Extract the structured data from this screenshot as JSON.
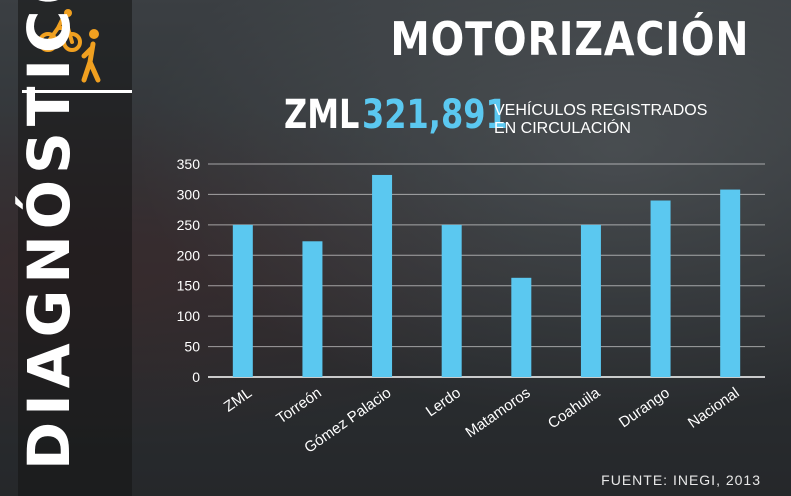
{
  "header": {
    "title": "MOTORIZACIÓN",
    "side_label": "DIAGNÓSTICO",
    "zml_label": "ZML",
    "zml_value": "321,891",
    "zml_desc": "Vehículos registrados en circulación"
  },
  "footer": {
    "source": "FUENTE: INEGI, 2013"
  },
  "icons": [
    "cyclist-icon",
    "pedestrian-icon"
  ],
  "colors": {
    "bar": "#5bc8f0",
    "accent_orange": "#f0a020",
    "text": "#ffffff"
  },
  "chart_data": {
    "type": "bar",
    "categories": [
      "ZML",
      "Torreón",
      "Gómez Palacio",
      "Lerdo",
      "Matamoros",
      "Coahuila",
      "Durango",
      "Nacional"
    ],
    "values": [
      250,
      223,
      332,
      250,
      163,
      250,
      290,
      308
    ],
    "yticks": [
      0,
      50,
      100,
      150,
      200,
      250,
      300,
      350
    ],
    "ylim": [
      0,
      350
    ],
    "title": "",
    "xlabel": "",
    "ylabel": "",
    "grid": true
  }
}
